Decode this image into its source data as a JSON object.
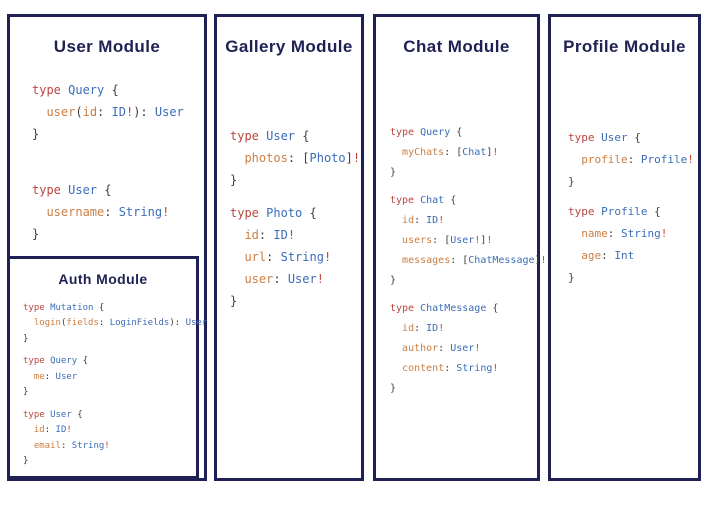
{
  "colors": {
    "navy": "#1f2154",
    "keyword": "#bb4540",
    "type": "#3a6db6",
    "field": "#cc7f44",
    "punct": "#3f3f3f",
    "bang": "#c1453f",
    "background": "#ffffff"
  },
  "modules": [
    {
      "name": "user-module",
      "title": "User Module",
      "blocks": [
        [
          [
            [
              "k",
              "type "
            ],
            [
              "t",
              "Query "
            ],
            [
              "p",
              "{"
            ]
          ],
          [
            [
              "p",
              "  "
            ],
            [
              "f",
              "user"
            ],
            [
              "p",
              "("
            ],
            [
              "f",
              "id"
            ],
            [
              "p",
              ": "
            ],
            [
              "t",
              "ID"
            ],
            [
              "b",
              "!"
            ],
            [
              "p",
              "): "
            ],
            [
              "t",
              "User"
            ]
          ],
          [
            [
              "p",
              "}"
            ]
          ]
        ],
        [
          [
            [
              "k",
              "type "
            ],
            [
              "t",
              "User "
            ],
            [
              "p",
              "{"
            ]
          ],
          [
            [
              "p",
              "  "
            ],
            [
              "f",
              "username"
            ],
            [
              "p",
              ": "
            ],
            [
              "t",
              "String"
            ],
            [
              "b",
              "!"
            ]
          ],
          [
            [
              "p",
              "}"
            ]
          ]
        ]
      ]
    },
    {
      "name": "auth-module",
      "title": "Auth Module",
      "blocks": [
        [
          [
            [
              "k",
              "type "
            ],
            [
              "t",
              "Mutation "
            ],
            [
              "p",
              "{"
            ]
          ],
          [
            [
              "p",
              "  "
            ],
            [
              "f",
              "login"
            ],
            [
              "p",
              "("
            ],
            [
              "f",
              "fields"
            ],
            [
              "p",
              ": "
            ],
            [
              "t",
              "LoginFields"
            ],
            [
              "p",
              "): "
            ],
            [
              "t",
              "User"
            ]
          ],
          [
            [
              "p",
              "}"
            ]
          ]
        ],
        [
          [
            [
              "k",
              "type "
            ],
            [
              "t",
              "Query "
            ],
            [
              "p",
              "{"
            ]
          ],
          [
            [
              "p",
              "  "
            ],
            [
              "f",
              "me"
            ],
            [
              "p",
              ": "
            ],
            [
              "t",
              "User"
            ]
          ],
          [
            [
              "p",
              "}"
            ]
          ]
        ],
        [
          [
            [
              "k",
              "type "
            ],
            [
              "t",
              "User "
            ],
            [
              "p",
              "{"
            ]
          ],
          [
            [
              "p",
              "  "
            ],
            [
              "f",
              "id"
            ],
            [
              "p",
              ": "
            ],
            [
              "t",
              "ID"
            ],
            [
              "b",
              "!"
            ]
          ],
          [
            [
              "p",
              "  "
            ],
            [
              "f",
              "email"
            ],
            [
              "p",
              ": "
            ],
            [
              "t",
              "String"
            ],
            [
              "b",
              "!"
            ]
          ],
          [
            [
              "p",
              "}"
            ]
          ]
        ]
      ]
    },
    {
      "name": "gallery-module",
      "title": "Gallery Module",
      "blocks": [
        [
          [
            [
              "k",
              "type "
            ],
            [
              "t",
              "User "
            ],
            [
              "p",
              "{"
            ]
          ],
          [
            [
              "p",
              "  "
            ],
            [
              "f",
              "photos"
            ],
            [
              "p",
              ": ["
            ],
            [
              "t",
              "Photo"
            ],
            [
              "p",
              "]"
            ],
            [
              "b",
              "!"
            ]
          ],
          [
            [
              "p",
              "}"
            ]
          ]
        ],
        [
          [
            [
              "k",
              "type "
            ],
            [
              "t",
              "Photo "
            ],
            [
              "p",
              "{"
            ]
          ],
          [
            [
              "p",
              "  "
            ],
            [
              "f",
              "id"
            ],
            [
              "p",
              ": "
            ],
            [
              "t",
              "ID"
            ],
            [
              "b",
              "!"
            ]
          ],
          [
            [
              "p",
              "  "
            ],
            [
              "f",
              "url"
            ],
            [
              "p",
              ": "
            ],
            [
              "t",
              "String"
            ],
            [
              "b",
              "!"
            ]
          ],
          [
            [
              "p",
              "  "
            ],
            [
              "f",
              "user"
            ],
            [
              "p",
              ": "
            ],
            [
              "t",
              "User"
            ],
            [
              "b",
              "!"
            ]
          ],
          [
            [
              "p",
              "}"
            ]
          ]
        ]
      ]
    },
    {
      "name": "chat-module",
      "title": "Chat Module",
      "blocks": [
        [
          [
            [
              "k",
              "type "
            ],
            [
              "t",
              "Query "
            ],
            [
              "p",
              "{"
            ]
          ],
          [
            [
              "p",
              "  "
            ],
            [
              "f",
              "myChats"
            ],
            [
              "p",
              ": ["
            ],
            [
              "t",
              "Chat"
            ],
            [
              "p",
              "]"
            ],
            [
              "b",
              "!"
            ]
          ],
          [
            [
              "p",
              "}"
            ]
          ]
        ],
        [
          [
            [
              "k",
              "type "
            ],
            [
              "t",
              "Chat "
            ],
            [
              "p",
              "{"
            ]
          ],
          [
            [
              "p",
              "  "
            ],
            [
              "f",
              "id"
            ],
            [
              "p",
              ": "
            ],
            [
              "t",
              "ID"
            ],
            [
              "b",
              "!"
            ]
          ],
          [
            [
              "p",
              "  "
            ],
            [
              "f",
              "users"
            ],
            [
              "p",
              ": ["
            ],
            [
              "t",
              "User"
            ],
            [
              "b",
              "!"
            ],
            [
              "p",
              "]"
            ],
            [
              "b",
              "!"
            ]
          ],
          [
            [
              "p",
              "  "
            ],
            [
              "f",
              "messages"
            ],
            [
              "p",
              ": ["
            ],
            [
              "t",
              "ChatMessage"
            ],
            [
              "p",
              "]"
            ],
            [
              "b",
              "!"
            ]
          ],
          [
            [
              "p",
              "}"
            ]
          ]
        ],
        [
          [
            [
              "k",
              "type "
            ],
            [
              "t",
              "ChatMessage "
            ],
            [
              "p",
              "{"
            ]
          ],
          [
            [
              "p",
              "  "
            ],
            [
              "f",
              "id"
            ],
            [
              "p",
              ": "
            ],
            [
              "t",
              "ID"
            ],
            [
              "b",
              "!"
            ]
          ],
          [
            [
              "p",
              "  "
            ],
            [
              "f",
              "author"
            ],
            [
              "p",
              ": "
            ],
            [
              "t",
              "User"
            ],
            [
              "b",
              "!"
            ]
          ],
          [
            [
              "p",
              "  "
            ],
            [
              "f",
              "content"
            ],
            [
              "p",
              ": "
            ],
            [
              "t",
              "String"
            ],
            [
              "b",
              "!"
            ]
          ],
          [
            [
              "p",
              "}"
            ]
          ]
        ]
      ]
    },
    {
      "name": "profile-module",
      "title": "Profile Module",
      "blocks": [
        [
          [
            [
              "k",
              "type "
            ],
            [
              "t",
              "User "
            ],
            [
              "p",
              "{"
            ]
          ],
          [
            [
              "p",
              "  "
            ],
            [
              "f",
              "profile"
            ],
            [
              "p",
              ": "
            ],
            [
              "t",
              "Profile"
            ],
            [
              "b",
              "!"
            ]
          ],
          [
            [
              "p",
              "}"
            ]
          ]
        ],
        [
          [
            [
              "k",
              "type "
            ],
            [
              "t",
              "Profile "
            ],
            [
              "p",
              "{"
            ]
          ],
          [
            [
              "p",
              "  "
            ],
            [
              "f",
              "name"
            ],
            [
              "p",
              ": "
            ],
            [
              "t",
              "String"
            ],
            [
              "b",
              "!"
            ]
          ],
          [
            [
              "p",
              "  "
            ],
            [
              "f",
              "age"
            ],
            [
              "p",
              ": "
            ],
            [
              "t",
              "Int"
            ]
          ],
          [
            [
              "p",
              "}"
            ]
          ]
        ]
      ]
    }
  ]
}
